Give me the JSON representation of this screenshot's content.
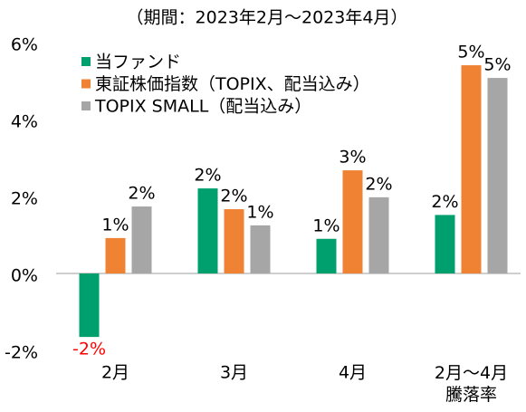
{
  "chart_data": {
    "type": "bar",
    "title": "（期間：2023年2月～2023年4月）",
    "categories": [
      "2月",
      "3月",
      "4月",
      "2月～4月\n騰落率"
    ],
    "series": [
      {
        "name": "当ファンド",
        "color": "#00a06e",
        "values": [
          -1.65,
          2.21,
          0.9,
          1.52
        ],
        "value_labels": [
          "-2%",
          "2%",
          "1%",
          "2%"
        ]
      },
      {
        "name": "東証株価指数（TOPIX、配当込み）",
        "color": "#f08233",
        "values": [
          0.92,
          1.67,
          2.68,
          5.41
        ],
        "value_labels": [
          "1%",
          "2%",
          "3%",
          "5%"
        ]
      },
      {
        "name": "TOPIX SMALL（配当込み）",
        "color": "#a6a6a6",
        "values": [
          1.74,
          1.25,
          1.98,
          5.08
        ],
        "value_labels": [
          "2%",
          "1%",
          "2%",
          "5%"
        ]
      }
    ],
    "negative_label_color": "#ff0000",
    "ylim": [
      -2,
      6
    ],
    "yticks": [
      {
        "value": -2,
        "label": "-2%"
      },
      {
        "value": 0,
        "label": "0%"
      },
      {
        "value": 2,
        "label": "2%"
      },
      {
        "value": 4,
        "label": "4%"
      },
      {
        "value": 6,
        "label": "6%"
      }
    ],
    "grid": false,
    "legend": "top-left"
  }
}
